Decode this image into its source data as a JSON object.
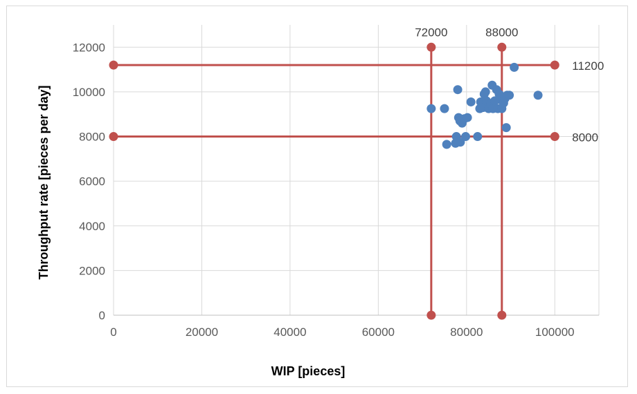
{
  "chart_data": {
    "type": "scatter",
    "title": "",
    "xlabel": "WIP [pieces]",
    "ylabel": "Throughput rate [pieces per day]",
    "xlim": [
      0,
      110000
    ],
    "ylim": [
      0,
      13000
    ],
    "x_ticks": [
      0,
      20000,
      40000,
      60000,
      80000,
      100000
    ],
    "y_ticks": [
      0,
      2000,
      4000,
      6000,
      8000,
      10000,
      12000
    ],
    "grid": true,
    "legend": "none",
    "colors": {
      "points": "#4f81bd",
      "ref_lines": "#c0504d",
      "grid": "#d9d9d9"
    },
    "series": [
      {
        "points": [
          [
            72000,
            9250
          ],
          [
            75000,
            9250
          ],
          [
            75500,
            7650
          ],
          [
            77500,
            7700
          ],
          [
            77700,
            8000
          ],
          [
            78000,
            10100
          ],
          [
            78200,
            8850
          ],
          [
            78500,
            8700
          ],
          [
            78600,
            7750
          ],
          [
            79000,
            8600
          ],
          [
            79500,
            8800
          ],
          [
            79800,
            8000
          ],
          [
            80200,
            8850
          ],
          [
            81000,
            9550
          ],
          [
            82500,
            8000
          ],
          [
            83000,
            9250
          ],
          [
            83200,
            9550
          ],
          [
            83800,
            9300
          ],
          [
            84000,
            9900
          ],
          [
            84300,
            10000
          ],
          [
            84500,
            9600
          ],
          [
            85000,
            9250
          ],
          [
            85500,
            9450
          ],
          [
            85800,
            10300
          ],
          [
            86000,
            9250
          ],
          [
            86400,
            9600
          ],
          [
            86800,
            10100
          ],
          [
            87100,
            9250
          ],
          [
            87400,
            9900
          ],
          [
            87700,
            9650
          ],
          [
            88000,
            9250
          ],
          [
            88400,
            9500
          ],
          [
            88700,
            9700
          ],
          [
            89000,
            8400
          ],
          [
            89200,
            9850
          ],
          [
            89700,
            9850
          ],
          [
            90800,
            11100
          ],
          [
            96200,
            9850
          ]
        ]
      }
    ],
    "reference_lines": [
      {
        "orientation": "vertical",
        "label": "72000",
        "value": 72000,
        "from": 0,
        "to": 12000
      },
      {
        "orientation": "vertical",
        "label": "88000",
        "value": 88000,
        "from": 0,
        "to": 12000
      },
      {
        "orientation": "horizontal",
        "label": "11200",
        "value": 11200,
        "from": 0,
        "to": 100000
      },
      {
        "orientation": "horizontal",
        "label": "8000",
        "value": 8000,
        "from": 0,
        "to": 100000
      }
    ]
  }
}
